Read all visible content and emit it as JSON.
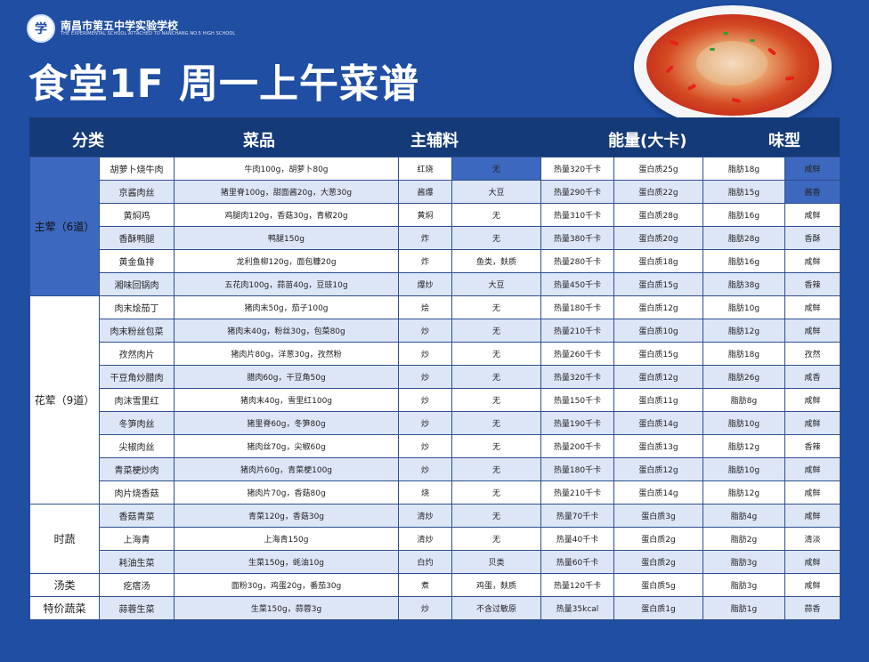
{
  "school": {
    "name_cn": "南昌市第五中学实验学校",
    "name_en": "THE EXPERIMENTAL SCHOOL ATTACHED TO NANCHANG NO.5 HIGH SCHOOL",
    "logo_glyph": "学"
  },
  "title": "食堂1F 周一上午菜谱",
  "headers": [
    "分类",
    "菜品",
    "主辅料",
    "能量(大卡)",
    "味型"
  ],
  "categories": {
    "main": "主荤（6道）",
    "half": "花荤（9道）",
    "veg": "时蔬",
    "soup": "汤类",
    "special": "特价蔬菜"
  },
  "rows": [
    [
      "胡萝卜烧牛肉",
      "牛肉100g，胡萝卜80g",
      "红烧",
      "无",
      "热量320千卡",
      "蛋白质25g",
      "脂肪18g",
      "咸鲜"
    ],
    [
      "京酱肉丝",
      "猪里脊100g，甜面酱20g，大葱30g",
      "酱爆",
      "大豆",
      "热量290千卡",
      "蛋白质22g",
      "脂肪15g",
      "酱香"
    ],
    [
      "黄焖鸡",
      "鸡腿肉120g，香菇30g，青椒20g",
      "黄焖",
      "无",
      "热量310千卡",
      "蛋白质28g",
      "脂肪16g",
      "咸鲜"
    ],
    [
      "香酥鸭腿",
      "鸭腿150g",
      "炸",
      "无",
      "热量380千卡",
      "蛋白质20g",
      "脂肪28g",
      "香酥"
    ],
    [
      "黄金鱼排",
      "龙利鱼柳120g，面包糠20g",
      "炸",
      "鱼类，麸质",
      "热量280千卡",
      "蛋白质18g",
      "脂肪16g",
      "咸鲜"
    ],
    [
      "湘味回锅肉",
      "五花肉100g，蒜苗40g，豆豉10g",
      "爆炒",
      "大豆",
      "热量450千卡",
      "蛋白质15g",
      "脂肪38g",
      "香辣"
    ],
    [
      "肉末烩茄丁",
      "猪肉末50g，茄子100g",
      "烩",
      "无",
      "热量180千卡",
      "蛋白质12g",
      "脂肪10g",
      "咸鲜"
    ],
    [
      "肉末粉丝包菜",
      "猪肉末40g，粉丝30g，包菜80g",
      "炒",
      "无",
      "热量210千卡",
      "蛋白质10g",
      "脂肪12g",
      "咸鲜"
    ],
    [
      "孜然肉片",
      "猪肉片80g，洋葱30g，孜然粉",
      "炒",
      "无",
      "热量260千卡",
      "蛋白质15g",
      "脂肪18g",
      "孜然"
    ],
    [
      "干豆角炒腊肉",
      "腊肉60g，干豆角50g",
      "炒",
      "无",
      "热量320千卡",
      "蛋白质12g",
      "脂肪26g",
      "咸香"
    ],
    [
      "肉沫雪里红",
      "猪肉末40g，雪里红100g",
      "炒",
      "无",
      "热量150千卡",
      "蛋白质11g",
      "脂肪8g",
      "咸鲜"
    ],
    [
      "冬笋肉丝",
      "猪里脊60g，冬笋80g",
      "炒",
      "无",
      "热量190千卡",
      "蛋白质14g",
      "脂肪10g",
      "咸鲜"
    ],
    [
      "尖椒肉丝",
      "猪肉丝70g，尖椒60g",
      "炒",
      "无",
      "热量200千卡",
      "蛋白质13g",
      "脂肪12g",
      "香辣"
    ],
    [
      "青菜梗炒肉",
      "猪肉片60g，青菜梗100g",
      "炒",
      "无",
      "热量180千卡",
      "蛋白质12g",
      "脂肪10g",
      "咸鲜"
    ],
    [
      "肉片烧香菇",
      "猪肉片70g，香菇80g",
      "烧",
      "无",
      "热量210千卡",
      "蛋白质14g",
      "脂肪12g",
      "咸鲜"
    ],
    [
      "香菇青菜",
      "青菜120g，香菇30g",
      "清炒",
      "无",
      "热量70千卡",
      "蛋白质3g",
      "脂肪4g",
      "咸鲜"
    ],
    [
      "上海青",
      "上海青150g",
      "清炒",
      "无",
      "热量40千卡",
      "蛋白质2g",
      "脂肪2g",
      "清淡"
    ],
    [
      "耗油生菜",
      "生菜150g，蚝油10g",
      "白灼",
      "贝类",
      "热量60千卡",
      "蛋白质2g",
      "脂肪3g",
      "咸鲜"
    ],
    [
      "疙瘩汤",
      "面粉30g，鸡蛋20g，番茄30g",
      "煮",
      "鸡蛋，麸质",
      "热量120千卡",
      "蛋白质5g",
      "脂肪3g",
      "咸鲜"
    ],
    [
      "蒜蓉生菜",
      "生菜150g，蒜蓉3g",
      "炒",
      "不含过敏原",
      "热量35kcal",
      "蛋白质1g",
      "脂肪1g",
      "蒜香"
    ]
  ],
  "colors": {
    "background": "#1f4ea3",
    "header": "#143a78",
    "highlight": "#3d68bf",
    "row_alt": "#dde6f7"
  }
}
